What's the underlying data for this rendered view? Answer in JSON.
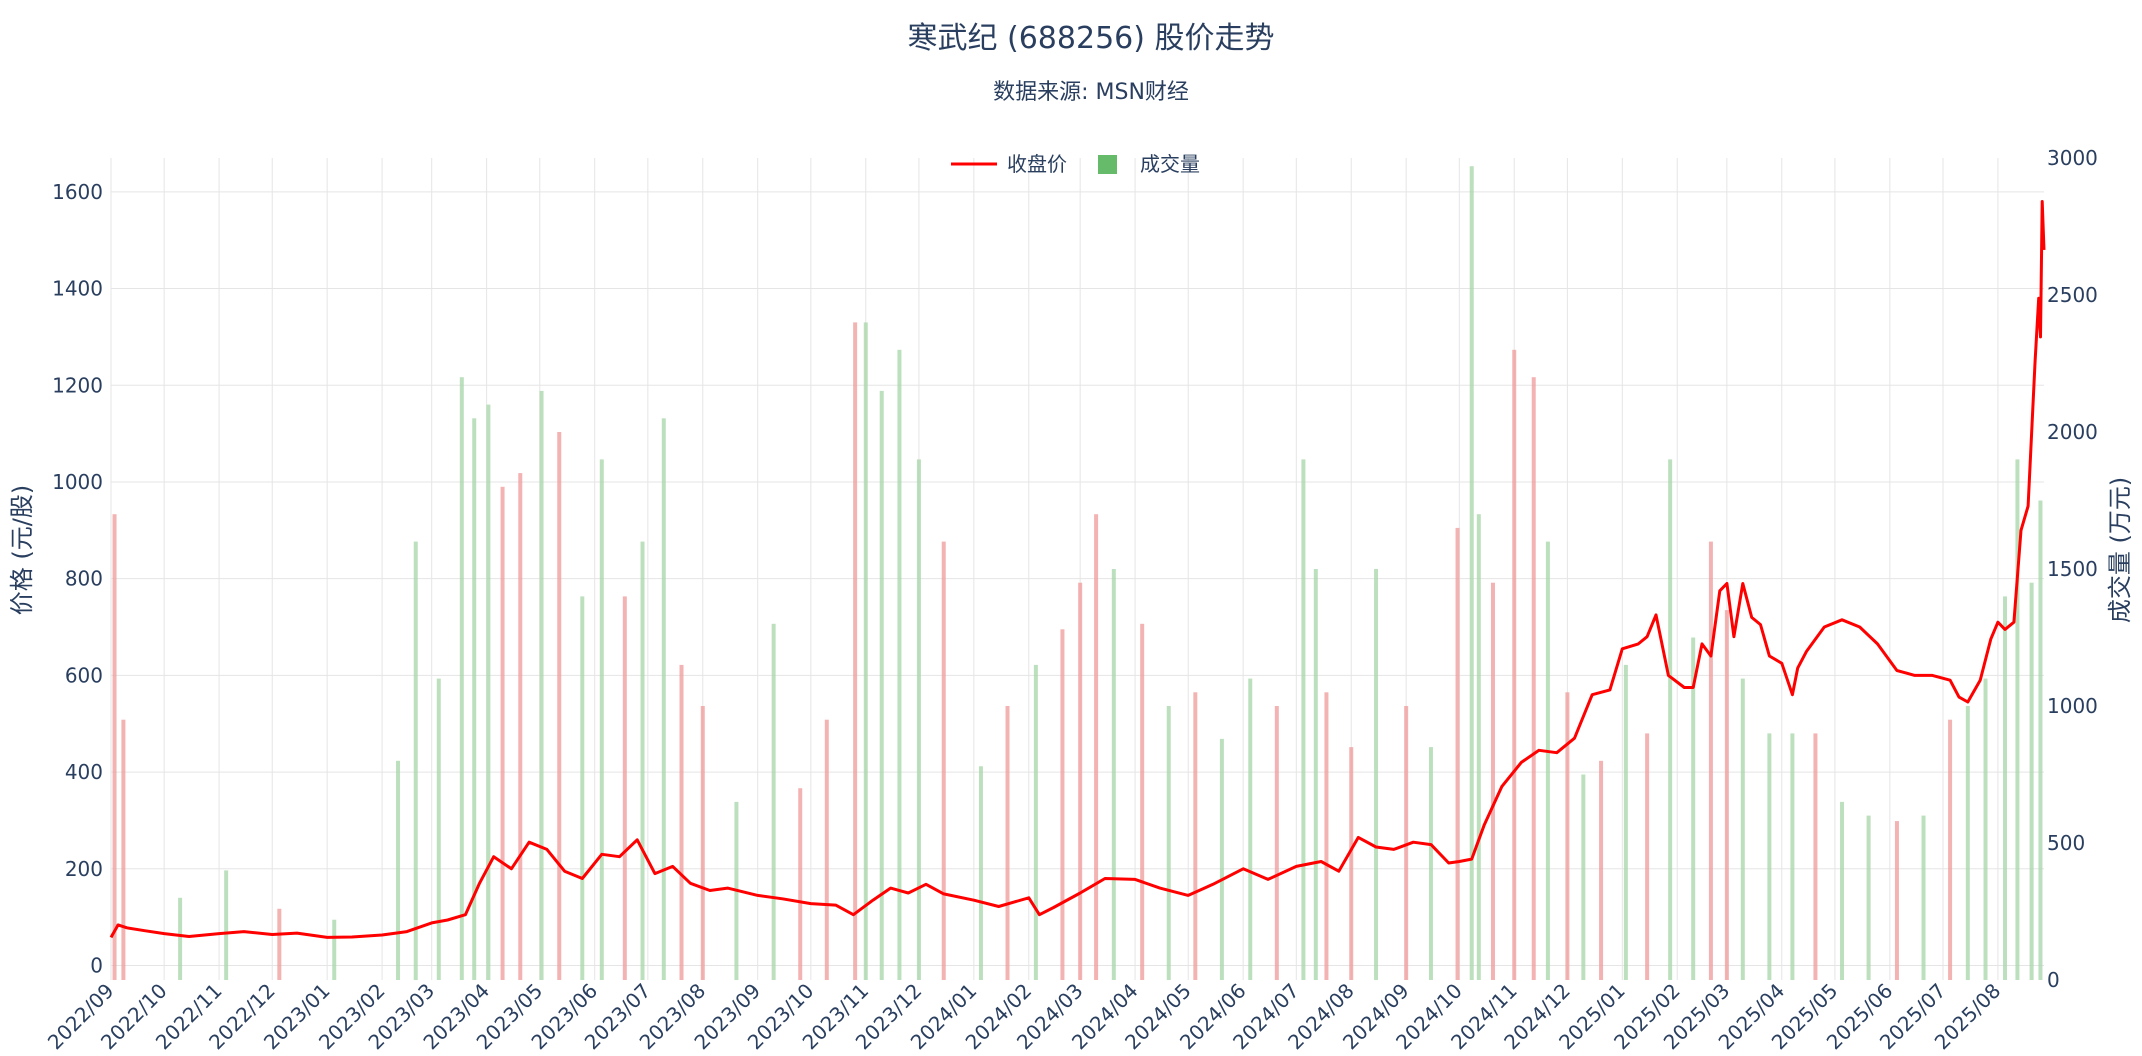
{
  "chart_data": {
    "type": "line",
    "title": "寒武纪 (688256) 股价走势",
    "subtitle": "数据来源: MSN财经",
    "ylabel": "价格 (元/股)",
    "y2label": "成交量 (万元)",
    "ylim": [
      -30,
      1670
    ],
    "y2lim": [
      0,
      3000
    ],
    "yticks": [
      0,
      200,
      400,
      600,
      800,
      1000,
      1200,
      1400,
      1600
    ],
    "y2ticks": [
      0,
      500,
      1000,
      1500,
      2000,
      2500,
      3000
    ],
    "xlim": [
      "2022-09-01",
      "2025-08-27"
    ],
    "x_tick_labels": [
      "2022/09",
      "2022/10",
      "2022/11",
      "2022/12",
      "2023/01",
      "2023/02",
      "2023/03",
      "2023/04",
      "2023/05",
      "2023/06",
      "2023/07",
      "2023/08",
      "2023/09",
      "2023/10",
      "2023/11",
      "2023/12",
      "2024/01",
      "2024/02",
      "2024/03",
      "2024/04",
      "2024/05",
      "2024/06",
      "2024/07",
      "2024/08",
      "2024/09",
      "2024/10",
      "2024/11",
      "2024/12",
      "2025/01",
      "2025/02",
      "2025/03",
      "2025/04",
      "2025/05",
      "2025/06",
      "2025/07",
      "2025/08"
    ],
    "legend": [
      {
        "name": "收盘价",
        "color": "#ff0000",
        "kind": "line"
      },
      {
        "name": "成交量",
        "color": "#66bb6a",
        "kind": "bar"
      }
    ],
    "legend_position": "top-center",
    "grid": true,
    "colors": {
      "line": "#ff0000",
      "up": "#ef9a9a",
      "down": "#a5d6a7"
    },
    "price_series": {
      "name": "收盘价",
      "x": [
        "2022-09-01",
        "2022-09-05",
        "2022-09-10",
        "2022-09-20",
        "2022-10-01",
        "2022-10-15",
        "2022-11-01",
        "2022-11-15",
        "2022-12-01",
        "2022-12-15",
        "2023-01-01",
        "2023-01-15",
        "2023-02-01",
        "2023-02-15",
        "2023-03-01",
        "2023-03-10",
        "2023-03-20",
        "2023-03-28",
        "2023-04-05",
        "2023-04-15",
        "2023-04-25",
        "2023-05-05",
        "2023-05-15",
        "2023-05-25",
        "2023-06-05",
        "2023-06-15",
        "2023-06-25",
        "2023-07-05",
        "2023-07-15",
        "2023-07-25",
        "2023-08-05",
        "2023-08-15",
        "2023-09-01",
        "2023-09-15",
        "2023-10-01",
        "2023-10-15",
        "2023-10-25",
        "2023-11-05",
        "2023-11-15",
        "2023-11-25",
        "2023-12-05",
        "2023-12-15",
        "2024-01-01",
        "2024-01-15",
        "2024-02-01",
        "2024-02-07",
        "2024-02-15",
        "2024-03-01",
        "2024-03-15",
        "2024-04-01",
        "2024-04-15",
        "2024-05-01",
        "2024-05-15",
        "2024-06-01",
        "2024-06-15",
        "2024-07-01",
        "2024-07-15",
        "2024-07-25",
        "2024-08-05",
        "2024-08-15",
        "2024-08-25",
        "2024-09-05",
        "2024-09-15",
        "2024-09-25",
        "2024-10-01",
        "2024-10-08",
        "2024-10-15",
        "2024-10-25",
        "2024-11-05",
        "2024-11-15",
        "2024-11-25",
        "2024-12-05",
        "2024-12-15",
        "2024-12-25",
        "2025-01-01",
        "2025-01-10",
        "2025-01-15",
        "2025-01-20",
        "2025-01-27",
        "2025-02-05",
        "2025-02-10",
        "2025-02-15",
        "2025-02-20",
        "2025-02-25",
        "2025-03-01",
        "2025-03-05",
        "2025-03-10",
        "2025-03-15",
        "2025-03-20",
        "2025-03-25",
        "2025-04-01",
        "2025-04-07",
        "2025-04-10",
        "2025-04-15",
        "2025-04-25",
        "2025-05-05",
        "2025-05-15",
        "2025-05-25",
        "2025-06-05",
        "2025-06-15",
        "2025-06-25",
        "2025-07-05",
        "2025-07-10",
        "2025-07-15",
        "2025-07-22",
        "2025-07-28",
        "2025-08-01",
        "2025-08-05",
        "2025-08-10",
        "2025-08-14",
        "2025-08-18",
        "2025-08-20",
        "2025-08-22",
        "2025-08-24",
        "2025-08-25",
        "2025-08-26",
        "2025-08-27"
      ],
      "y": [
        58,
        84,
        78,
        72,
        66,
        60,
        66,
        70,
        64,
        67,
        58,
        59,
        63,
        70,
        88,
        94,
        105,
        170,
        225,
        200,
        255,
        240,
        195,
        180,
        230,
        225,
        260,
        190,
        205,
        170,
        155,
        160,
        145,
        138,
        128,
        125,
        105,
        135,
        160,
        150,
        168,
        148,
        135,
        122,
        140,
        105,
        120,
        150,
        180,
        178,
        160,
        145,
        168,
        200,
        178,
        205,
        215,
        195,
        265,
        245,
        240,
        255,
        250,
        212,
        215,
        220,
        290,
        370,
        420,
        445,
        440,
        470,
        560,
        570,
        655,
        665,
        680,
        725,
        600,
        575,
        575,
        665,
        640,
        775,
        790,
        680,
        790,
        720,
        705,
        640,
        625,
        560,
        615,
        650,
        700,
        715,
        700,
        665,
        610,
        600,
        600,
        590,
        555,
        545,
        590,
        675,
        710,
        695,
        710,
        900,
        950,
        1100,
        1250,
        1380,
        1300,
        1580,
        1480
      ]
    },
    "volume_series": {
      "name": "成交量",
      "unit": "万元",
      "x": [
        "2022-09-03",
        "2022-09-08",
        "2022-10-10",
        "2022-11-05",
        "2022-12-05",
        "2023-01-05",
        "2023-02-10",
        "2023-02-20",
        "2023-03-05",
        "2023-03-18",
        "2023-03-25",
        "2023-04-02",
        "2023-04-10",
        "2023-04-20",
        "2023-05-02",
        "2023-05-12",
        "2023-05-25",
        "2023-06-05",
        "2023-06-18",
        "2023-06-28",
        "2023-07-10",
        "2023-07-20",
        "2023-08-01",
        "2023-08-20",
        "2023-09-10",
        "2023-09-25",
        "2023-10-10",
        "2023-10-26",
        "2023-11-01",
        "2023-11-10",
        "2023-11-20",
        "2023-12-01",
        "2023-12-15",
        "2024-01-05",
        "2024-01-20",
        "2024-02-05",
        "2024-02-20",
        "2024-03-01",
        "2024-03-10",
        "2024-03-20",
        "2024-04-05",
        "2024-04-20",
        "2024-05-05",
        "2024-05-20",
        "2024-06-05",
        "2024-06-20",
        "2024-07-05",
        "2024-07-12",
        "2024-07-18",
        "2024-08-01",
        "2024-08-15",
        "2024-09-01",
        "2024-09-15",
        "2024-09-30",
        "2024-10-08",
        "2024-10-12",
        "2024-10-20",
        "2024-11-01",
        "2024-11-12",
        "2024-11-20",
        "2024-12-01",
        "2024-12-10",
        "2024-12-20",
        "2025-01-03",
        "2025-01-15",
        "2025-01-28",
        "2025-02-10",
        "2025-02-20",
        "2025-03-01",
        "2025-03-10",
        "2025-03-25",
        "2025-04-07",
        "2025-04-20",
        "2025-05-05",
        "2025-05-20",
        "2025-06-05",
        "2025-06-20",
        "2025-07-05",
        "2025-07-15",
        "2025-07-25",
        "2025-08-05",
        "2025-08-12",
        "2025-08-20",
        "2025-08-25"
      ],
      "values": [
        1700,
        950,
        300,
        400,
        260,
        220,
        800,
        1600,
        1100,
        2200,
        2050,
        2100,
        1800,
        1850,
        2150,
        2000,
        1400,
        1900,
        1400,
        1600,
        2050,
        1150,
        1000,
        650,
        1300,
        700,
        950,
        2400,
        2400,
        2150,
        2300,
        1900,
        1600,
        780,
        1000,
        1150,
        1280,
        1450,
        1700,
        1500,
        1300,
        1000,
        1050,
        880,
        1100,
        1000,
        1900,
        1500,
        1050,
        850,
        1500,
        1000,
        850,
        1650,
        2970,
        1700,
        1450,
        2300,
        2200,
        1600,
        1050,
        750,
        800,
        1150,
        900,
        1900,
        1250,
        1600,
        1350,
        1100,
        900,
        900,
        900,
        650,
        600,
        580,
        600,
        950,
        1000,
        1100,
        1400,
        1900,
        1450,
        1750
      ],
      "direction": [
        "up",
        "up",
        "down",
        "down",
        "up",
        "down",
        "down",
        "down",
        "down",
        "down",
        "down",
        "down",
        "up",
        "up",
        "down",
        "up",
        "down",
        "down",
        "up",
        "down",
        "down",
        "up",
        "up",
        "down",
        "down",
        "up",
        "up",
        "up",
        "down",
        "down",
        "down",
        "down",
        "up",
        "down",
        "up",
        "down",
        "up",
        "up",
        "up",
        "down",
        "up",
        "down",
        "up",
        "down",
        "down",
        "up",
        "down",
        "down",
        "up",
        "up",
        "down",
        "up",
        "down",
        "up",
        "down",
        "down",
        "up",
        "up",
        "up",
        "down",
        "up",
        "down",
        "up",
        "down",
        "up",
        "down",
        "down",
        "up",
        "up",
        "down",
        "down",
        "down",
        "up",
        "down",
        "down",
        "up",
        "down",
        "up",
        "down",
        "down",
        "down",
        "down",
        "down",
        "down"
      ]
    }
  }
}
